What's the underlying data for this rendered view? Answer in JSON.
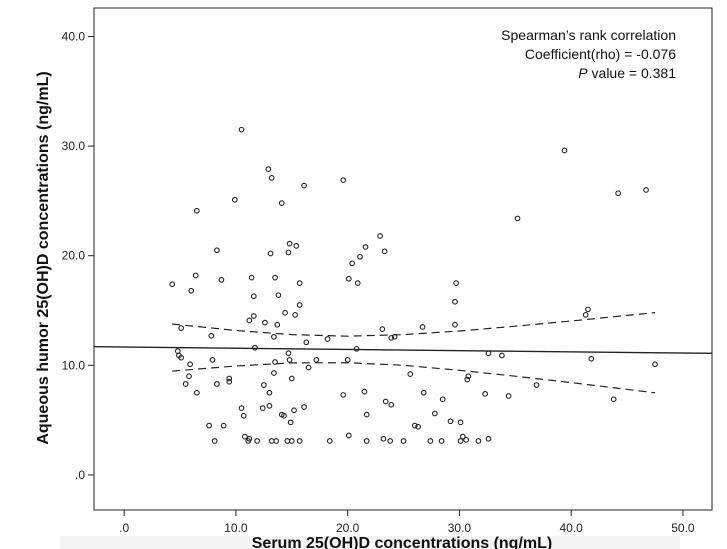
{
  "chart_data": {
    "type": "scatter",
    "title": "",
    "xlabel": "Serum 25(OH)D concentrations (ng/mL)",
    "ylabel": "Aqueous humor 25(OH)D concentrations (ng/mL)",
    "xlim": [
      -2.7,
      52.6
    ],
    "ylim": [
      -3.2,
      42.6
    ],
    "x_ticks": [
      0,
      10,
      20,
      30,
      40,
      50
    ],
    "x_tick_labels": [
      ".0",
      "10.0",
      "20.0",
      "30.0",
      "40.0",
      "50.0"
    ],
    "y_ticks": [
      0,
      10,
      20,
      30,
      40
    ],
    "y_tick_labels": [
      ".0",
      "10.0",
      "20.0",
      "30.0",
      "40.0"
    ],
    "grid": false,
    "annotation": {
      "line1": "Spearman’s rank correlation",
      "line2": "Coefficient(rho) = -0.076",
      "p_label": "P",
      "p_rest": " value = 0.381"
    },
    "regression": {
      "intercept": 11.67,
      "slope": -0.011
    },
    "ci_upper": [
      [
        4.3,
        13.77
      ],
      [
        10,
        13.18
      ],
      [
        15,
        12.8
      ],
      [
        20,
        12.66
      ],
      [
        25,
        12.8
      ],
      [
        30,
        13.13
      ],
      [
        35,
        13.57
      ],
      [
        40,
        14.04
      ],
      [
        47.5,
        14.81
      ]
    ],
    "ci_lower": [
      [
        4.3,
        9.47
      ],
      [
        10,
        9.94
      ],
      [
        15,
        10.22
      ],
      [
        20,
        10.24
      ],
      [
        25,
        10.0
      ],
      [
        30,
        9.55
      ],
      [
        35,
        9.01
      ],
      [
        40,
        8.42
      ],
      [
        47.5,
        7.49
      ]
    ],
    "points": [
      [
        10.5,
        31.5
      ],
      [
        12.9,
        27.9
      ],
      [
        13.2,
        27.1
      ],
      [
        16.1,
        26.4
      ],
      [
        19.6,
        26.9
      ],
      [
        9.9,
        25.1
      ],
      [
        14.1,
        24.8
      ],
      [
        6.5,
        24.1
      ],
      [
        14.8,
        21.1
      ],
      [
        15.4,
        20.9
      ],
      [
        8.3,
        20.5
      ],
      [
        13.1,
        20.2
      ],
      [
        14.7,
        20.3
      ],
      [
        20.4,
        19.3
      ],
      [
        21.1,
        19.9
      ],
      [
        20.1,
        17.9
      ],
      [
        20.9,
        17.5
      ],
      [
        6.4,
        18.2
      ],
      [
        4.3,
        17.4
      ],
      [
        6.0,
        16.8
      ],
      [
        8.7,
        17.8
      ],
      [
        11.4,
        18.0
      ],
      [
        13.5,
        18.0
      ],
      [
        15.7,
        17.5
      ],
      [
        11.6,
        16.3
      ],
      [
        13.8,
        16.4
      ],
      [
        15.7,
        15.5
      ],
      [
        22.9,
        21.8
      ],
      [
        23.3,
        20.4
      ],
      [
        21.6,
        20.8
      ],
      [
        29.7,
        17.5
      ],
      [
        29.6,
        15.8
      ],
      [
        35.2,
        23.4
      ],
      [
        39.4,
        29.6
      ],
      [
        44.2,
        25.7
      ],
      [
        46.7,
        26.0
      ],
      [
        5.1,
        13.4
      ],
      [
        7.8,
        12.7
      ],
      [
        11.2,
        14.1
      ],
      [
        11.6,
        14.5
      ],
      [
        12.6,
        13.9
      ],
      [
        13.7,
        13.7
      ],
      [
        14.4,
        14.8
      ],
      [
        15.3,
        14.6
      ],
      [
        13.4,
        12.6
      ],
      [
        16.3,
        12.1
      ],
      [
        18.2,
        12.4
      ],
      [
        11.7,
        11.6
      ],
      [
        20.8,
        11.5
      ],
      [
        4.8,
        11.3
      ],
      [
        4.9,
        10.9
      ],
      [
        5.1,
        10.7
      ],
      [
        5.9,
        10.1
      ],
      [
        7.9,
        10.5
      ],
      [
        14.7,
        11.1
      ],
      [
        14.8,
        10.5
      ],
      [
        13.5,
        10.3
      ],
      [
        17.2,
        10.5
      ],
      [
        20.0,
        10.5
      ],
      [
        16.5,
        9.8
      ],
      [
        5.8,
        9.0
      ],
      [
        5.5,
        8.3
      ],
      [
        9.4,
        8.8
      ],
      [
        9.4,
        8.5
      ],
      [
        8.3,
        8.3
      ],
      [
        13.4,
        9.3
      ],
      [
        15.0,
        8.8
      ],
      [
        6.5,
        7.5
      ],
      [
        12.5,
        8.2
      ],
      [
        13.0,
        7.5
      ],
      [
        19.6,
        7.3
      ],
      [
        10.5,
        6.1
      ],
      [
        10.7,
        5.4
      ],
      [
        12.4,
        6.1
      ],
      [
        13.0,
        6.3
      ],
      [
        14.1,
        5.5
      ],
      [
        14.3,
        5.4
      ],
      [
        15.2,
        5.9
      ],
      [
        16.1,
        6.2
      ],
      [
        14.9,
        4.8
      ],
      [
        7.6,
        4.5
      ],
      [
        8.9,
        4.5
      ],
      [
        20.1,
        3.6
      ],
      [
        10.8,
        3.5
      ],
      [
        11.1,
        3.1
      ],
      [
        11.2,
        3.3
      ],
      [
        8.1,
        3.1
      ],
      [
        11.9,
        3.1
      ],
      [
        13.2,
        3.1
      ],
      [
        13.6,
        3.1
      ],
      [
        14.6,
        3.1
      ],
      [
        15.0,
        3.1
      ],
      [
        15.7,
        3.1
      ],
      [
        18.4,
        3.1
      ],
      [
        23.1,
        13.3
      ],
      [
        23.9,
        12.5
      ],
      [
        24.2,
        12.6
      ],
      [
        26.7,
        13.5
      ],
      [
        29.6,
        13.7
      ],
      [
        32.6,
        11.1
      ],
      [
        33.8,
        10.9
      ],
      [
        41.3,
        14.6
      ],
      [
        41.5,
        15.1
      ],
      [
        41.8,
        10.6
      ],
      [
        47.5,
        10.1
      ],
      [
        25.6,
        9.2
      ],
      [
        30.8,
        9.0
      ],
      [
        30.7,
        8.7
      ],
      [
        36.9,
        8.2
      ],
      [
        21.5,
        7.6
      ],
      [
        26.8,
        7.5
      ],
      [
        23.4,
        6.7
      ],
      [
        23.9,
        6.4
      ],
      [
        28.5,
        6.9
      ],
      [
        32.3,
        7.4
      ],
      [
        34.4,
        7.2
      ],
      [
        43.8,
        6.9
      ],
      [
        21.7,
        5.5
      ],
      [
        27.8,
        5.6
      ],
      [
        26.0,
        4.5
      ],
      [
        26.3,
        4.4
      ],
      [
        29.2,
        4.9
      ],
      [
        30.1,
        4.8
      ],
      [
        21.7,
        3.1
      ],
      [
        23.2,
        3.3
      ],
      [
        23.8,
        3.1
      ],
      [
        25.0,
        3.1
      ],
      [
        27.4,
        3.1
      ],
      [
        28.4,
        3.1
      ],
      [
        30.1,
        3.1
      ],
      [
        30.3,
        3.5
      ],
      [
        30.6,
        3.2
      ],
      [
        31.7,
        3.1
      ],
      [
        32.6,
        3.3
      ]
    ]
  }
}
